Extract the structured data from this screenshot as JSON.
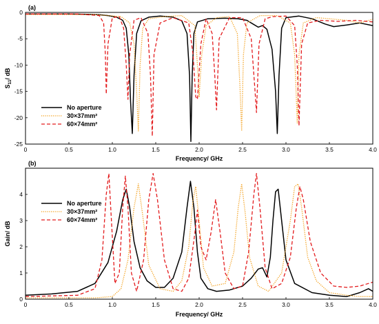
{
  "chart_data": [
    {
      "type": "line",
      "panel_label": "(a)",
      "xlabel": "Frequency/ GHz",
      "ylabel_main": "S",
      "ylabel_sub": "11",
      "ylabel_rest": "/ dB",
      "xlim": [
        0,
        4.0
      ],
      "ylim": [
        -25,
        0
      ],
      "xticks": [
        "0",
        "0.5",
        "1.0",
        "1.5",
        "2.0",
        "2.5",
        "3.0",
        "3.5",
        "4.0"
      ],
      "yticks": [
        "0",
        "-5",
        "-10",
        "-15",
        "-20",
        "-25"
      ],
      "grid": false,
      "legend_position": "bottom-left",
      "series": [
        {
          "name": "No aperture",
          "color": "#000000",
          "style": "solid",
          "x": [
            0,
            0.5,
            0.7,
            0.85,
            0.95,
            1.05,
            1.12,
            1.16,
            1.19,
            1.21,
            1.23,
            1.25,
            1.28,
            1.33,
            1.42,
            1.55,
            1.7,
            1.8,
            1.86,
            1.89,
            1.905,
            1.92,
            1.94,
            1.98,
            2.1,
            2.3,
            2.45,
            2.55,
            2.62,
            2.68,
            2.73,
            2.78,
            2.84,
            2.88,
            2.9,
            2.92,
            2.95,
            3.0,
            3.15,
            3.3,
            3.45,
            3.55,
            3.7,
            3.85,
            4.0
          ],
          "y": [
            -0.3,
            -0.3,
            -0.35,
            -0.45,
            -0.6,
            -0.9,
            -1.5,
            -3.0,
            -8.0,
            -17.0,
            -23.0,
            -12.0,
            -4.0,
            -1.6,
            -0.9,
            -0.7,
            -0.9,
            -1.6,
            -4.0,
            -12.0,
            -24.5,
            -12.0,
            -4.0,
            -1.8,
            -1.2,
            -1.1,
            -1.2,
            -1.5,
            -2.2,
            -2.8,
            -2.5,
            -3.2,
            -7.0,
            -15.0,
            -23.0,
            -12.0,
            -3.0,
            -1.0,
            -0.7,
            -1.2,
            -2.2,
            -2.7,
            -2.4,
            -2.0,
            -2.5
          ]
        },
        {
          "name": "30×37mm²",
          "color": "#f39c12",
          "style": "dotted",
          "x": [
            0,
            0.8,
            1.1,
            1.2,
            1.25,
            1.28,
            1.3,
            1.32,
            1.35,
            1.42,
            1.6,
            1.8,
            1.95,
            1.98,
            2.0,
            2.03,
            2.08,
            2.2,
            2.35,
            2.44,
            2.47,
            2.49,
            2.51,
            2.55,
            2.7,
            2.9,
            3.05,
            3.1,
            3.13,
            3.15,
            3.2,
            3.35,
            3.5,
            3.7,
            3.85,
            4.0
          ],
          "y": [
            -0.4,
            -0.4,
            -0.8,
            -2.0,
            -6.0,
            -15.0,
            -22.5,
            -10.0,
            -3.0,
            -1.2,
            -0.8,
            -0.6,
            -2.5,
            -10.0,
            -16.0,
            -8.0,
            -2.5,
            -1.0,
            -0.8,
            -4.0,
            -14.0,
            -22.5,
            -8.0,
            -2.0,
            -0.6,
            -0.6,
            -2.0,
            -8.0,
            -21.0,
            -8.0,
            -2.0,
            -1.0,
            -1.2,
            -1.5,
            -2.0,
            -1.3
          ]
        },
        {
          "name": "60×74mm²",
          "color": "#e31a1c",
          "style": "dashed",
          "x": [
            0,
            0.6,
            0.85,
            0.9,
            0.92,
            0.93,
            0.95,
            1.0,
            1.08,
            1.13,
            1.16,
            1.18,
            1.2,
            1.25,
            1.33,
            1.41,
            1.44,
            1.46,
            1.48,
            1.55,
            1.7,
            1.88,
            1.93,
            1.96,
            1.98,
            2.02,
            2.08,
            2.15,
            2.18,
            2.2,
            2.23,
            2.35,
            2.5,
            2.6,
            2.64,
            2.66,
            2.69,
            2.76,
            2.85,
            3.0,
            3.1,
            3.13,
            3.15,
            3.18,
            3.25,
            3.4,
            3.6,
            3.8,
            4.0
          ],
          "y": [
            -0.3,
            -0.3,
            -0.6,
            -2.0,
            -8.0,
            -15.5,
            -6.0,
            -1.0,
            -0.8,
            -3.0,
            -10.0,
            -16.5,
            -8.0,
            -1.5,
            -1.0,
            -4.0,
            -12.0,
            -23.5,
            -8.0,
            -2.0,
            -1.0,
            -2.0,
            -8.0,
            -16.0,
            -16.5,
            -6.0,
            -1.2,
            -4.0,
            -12.0,
            -18.5,
            -5.0,
            -1.0,
            -1.0,
            -5.0,
            -14.0,
            -19.0,
            -6.0,
            -1.2,
            -0.8,
            -0.7,
            -2.5,
            -10.0,
            -21.5,
            -6.0,
            -2.0,
            -1.5,
            -1.7,
            -1.5,
            -1.8
          ]
        }
      ]
    },
    {
      "type": "line",
      "panel_label": "(b)",
      "xlabel": "Frequency/ GHz",
      "ylabel": "Gain/ dB",
      "xlim": [
        0,
        4.0
      ],
      "ylim": [
        0,
        5
      ],
      "xticks": [
        "0",
        "0.5",
        "1.0",
        "1.5",
        "2.0",
        "2.5",
        "3.0",
        "3.5",
        "4.0"
      ],
      "yticks": [
        "0",
        "1",
        "2",
        "3",
        "4"
      ],
      "grid": false,
      "legend_position": "top-left",
      "series": [
        {
          "name": "No aperture",
          "color": "#000000",
          "style": "solid",
          "x": [
            0,
            0.3,
            0.6,
            0.8,
            0.95,
            1.05,
            1.12,
            1.16,
            1.2,
            1.25,
            1.32,
            1.4,
            1.5,
            1.6,
            1.7,
            1.8,
            1.86,
            1.9,
            1.94,
            1.98,
            2.02,
            2.1,
            2.2,
            2.35,
            2.5,
            2.6,
            2.68,
            2.73,
            2.78,
            2.82,
            2.85,
            2.88,
            2.91,
            2.95,
            3.0,
            3.1,
            3.3,
            3.5,
            3.7,
            3.85,
            3.95,
            4.0
          ],
          "y": [
            0.15,
            0.2,
            0.3,
            0.6,
            1.4,
            2.6,
            3.8,
            4.2,
            3.5,
            2.2,
            1.2,
            0.7,
            0.45,
            0.45,
            0.8,
            1.8,
            3.5,
            4.5,
            3.5,
            1.8,
            0.8,
            0.4,
            0.3,
            0.35,
            0.5,
            0.8,
            1.15,
            1.2,
            0.85,
            1.6,
            3.0,
            4.1,
            4.2,
            3.0,
            1.5,
            0.6,
            0.25,
            0.15,
            0.1,
            0.25,
            0.4,
            0.3
          ]
        },
        {
          "name": "30×37mm²",
          "color": "#f39c12",
          "style": "dotted",
          "x": [
            0,
            0.8,
            1.0,
            1.1,
            1.18,
            1.25,
            1.3,
            1.35,
            1.42,
            1.55,
            1.7,
            1.8,
            1.88,
            1.93,
            1.96,
            2.0,
            2.05,
            2.15,
            2.3,
            2.4,
            2.45,
            2.49,
            2.53,
            2.58,
            2.68,
            2.8,
            2.95,
            3.05,
            3.1,
            3.14,
            3.18,
            3.25,
            3.35,
            3.5,
            3.7,
            3.85,
            4.0
          ],
          "y": [
            0.05,
            0.05,
            0.1,
            0.4,
            1.5,
            3.5,
            4.4,
            3.2,
            1.3,
            0.4,
            0.3,
            0.7,
            2.0,
            3.8,
            4.3,
            3.0,
            1.2,
            0.5,
            0.6,
            1.8,
            3.5,
            4.4,
            3.3,
            1.6,
            0.5,
            0.3,
            1.0,
            3.0,
            4.3,
            4.4,
            3.5,
            1.6,
            0.7,
            0.25,
            0.15,
            0.1,
            0.1
          ]
        },
        {
          "name": "60×74mm²",
          "color": "#e31a1c",
          "style": "dashed",
          "x": [
            0,
            0.6,
            0.8,
            0.88,
            0.93,
            0.96,
            0.99,
            1.03,
            1.08,
            1.12,
            1.15,
            1.18,
            1.22,
            1.28,
            1.36,
            1.42,
            1.47,
            1.52,
            1.6,
            1.7,
            1.8,
            1.88,
            1.95,
            1.98,
            2.02,
            2.08,
            2.14,
            2.19,
            2.24,
            2.3,
            2.4,
            2.5,
            2.57,
            2.63,
            2.66,
            2.7,
            2.76,
            2.84,
            2.95,
            3.05,
            3.12,
            3.16,
            3.2,
            3.28,
            3.4,
            3.55,
            3.7,
            3.85,
            4.0
          ],
          "y": [
            0.1,
            0.15,
            0.4,
            1.5,
            4.0,
            4.8,
            3.0,
            0.6,
            1.0,
            3.5,
            4.7,
            3.5,
            1.0,
            0.3,
            1.5,
            3.8,
            4.8,
            3.8,
            1.5,
            0.4,
            0.3,
            0.8,
            2.5,
            3.4,
            2.0,
            1.5,
            2.6,
            3.8,
            2.6,
            1.0,
            0.4,
            0.5,
            1.8,
            4.0,
            4.8,
            3.5,
            1.2,
            0.4,
            0.6,
            1.6,
            3.5,
            4.3,
            3.8,
            2.2,
            1.0,
            0.5,
            0.45,
            0.5,
            0.65
          ]
        }
      ]
    }
  ]
}
